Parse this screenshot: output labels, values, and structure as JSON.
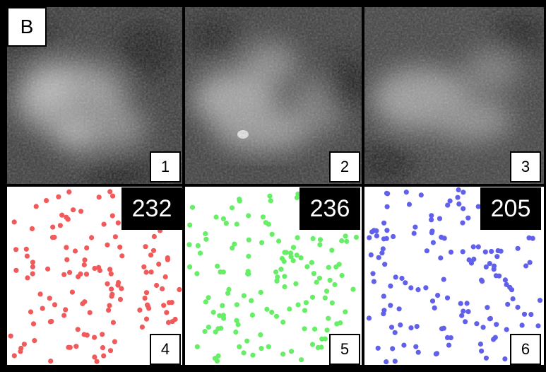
{
  "panel_letter": "B",
  "micrographs": [
    {
      "label": "1",
      "render": "grayscale"
    },
    {
      "label": "2",
      "render": "grayscale"
    },
    {
      "label": "3",
      "render": "grayscale"
    }
  ],
  "detections": [
    {
      "label": "4",
      "count": "232",
      "dot_color": "#f05a5a"
    },
    {
      "label": "5",
      "count": "236",
      "dot_color": "#66ee66"
    },
    {
      "label": "6",
      "count": "205",
      "dot_color": "#6060ea"
    }
  ]
}
